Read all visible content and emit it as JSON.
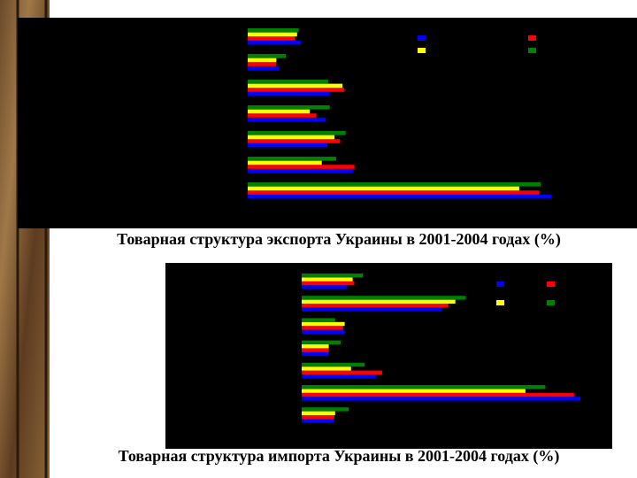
{
  "chart_data": [
    {
      "type": "bar",
      "orientation": "horizontal",
      "title": "Товарная структура экспорта Украины в 2001-2004 годах (%)",
      "categories": [
        null,
        null,
        null,
        null,
        null,
        null,
        null
      ],
      "xlim": [
        0,
        40
      ],
      "series": [
        {
          "color": "#0000ff",
          "values": [
            6.7,
            3.9,
            10.3,
            9.8,
            10.0,
            13.2,
            38.1
          ]
        },
        {
          "color": "#ff0000",
          "values": [
            5.9,
            3.6,
            12.1,
            8.6,
            11.6,
            13.4,
            36.6
          ]
        },
        {
          "color": "#ffff00",
          "values": [
            6.2,
            3.6,
            11.9,
            7.8,
            10.9,
            9.3,
            34.1
          ]
        },
        {
          "color": "#008000",
          "values": [
            6.4,
            4.8,
            10.1,
            10.3,
            12.3,
            11.1,
            36.8
          ]
        }
      ]
    },
    {
      "type": "bar",
      "orientation": "horizontal",
      "title": "Товарная структура импорта Украины в 2001-2004 годах (%)",
      "categories": [
        null,
        null,
        null,
        null,
        null,
        null,
        null
      ],
      "xlim": [
        0,
        40
      ],
      "series": [
        {
          "color": "#0000ff",
          "values": [
            5.7,
            17.6,
            5.4,
            3.4,
            9.3,
            35.0,
            4.0
          ]
        },
        {
          "color": "#ff0000",
          "values": [
            6.6,
            18.4,
            5.2,
            3.4,
            10.1,
            34.2,
            4.1
          ]
        },
        {
          "color": "#ffff00",
          "values": [
            6.4,
            19.3,
            5.4,
            3.4,
            6.2,
            28.1,
            4.2
          ]
        },
        {
          "color": "#008000",
          "values": [
            7.7,
            20.6,
            4.2,
            4.9,
            7.9,
            30.6,
            5.9
          ]
        }
      ]
    }
  ]
}
